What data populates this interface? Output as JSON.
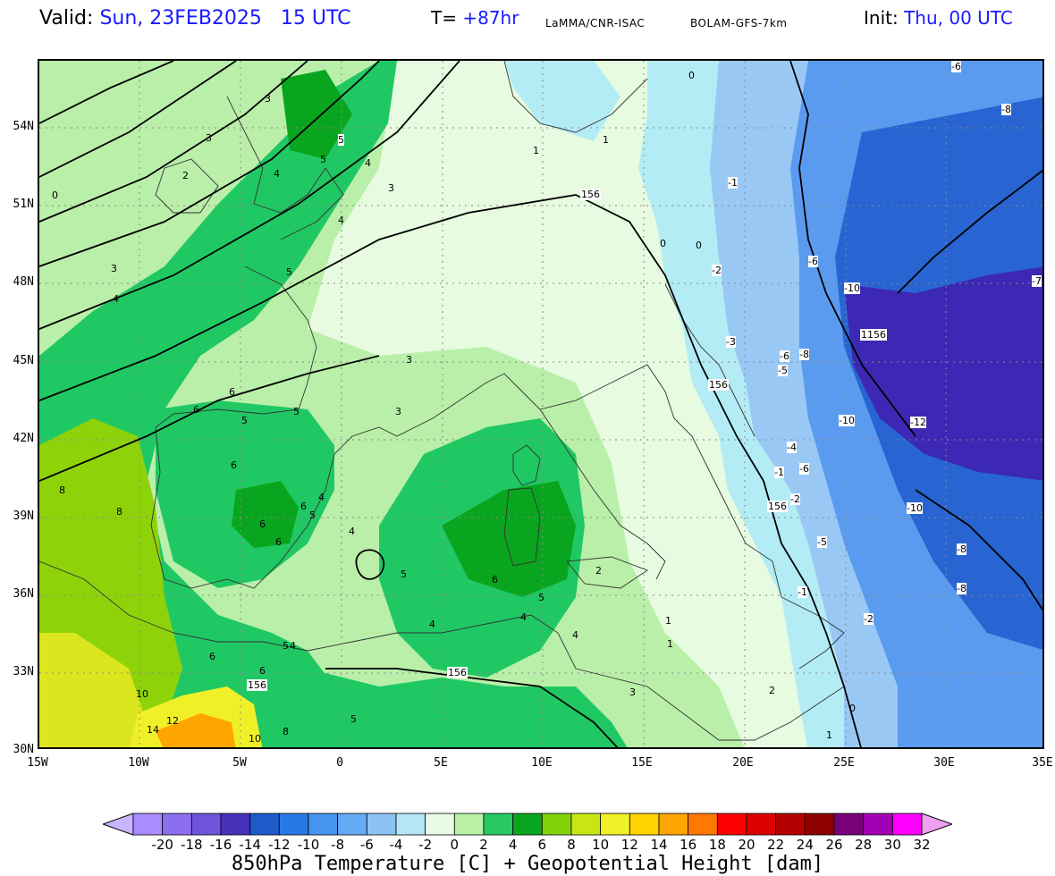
{
  "header": {
    "valid_label": "Valid:",
    "valid_value": "Sun, 23FEB2025   15 UTC",
    "forecast_label": "T=",
    "forecast_value": "+87hr",
    "source": "LaMMA/CNR-ISAC",
    "model": "BOLAM-GFS-7km",
    "init_label": "Init:",
    "init_value": "Thu, 00 UTC"
  },
  "map": {
    "lat_ticks": [
      "54N",
      "51N",
      "48N",
      "45N",
      "42N",
      "39N",
      "36N",
      "33N",
      "30N"
    ],
    "lon_ticks": [
      "15W",
      "10W",
      "5W",
      "0",
      "5E",
      "10E",
      "15E",
      "20E",
      "25E",
      "30E",
      "35E"
    ],
    "height_labels": [
      "156",
      "156",
      "156",
      "156",
      "156",
      "1156"
    ],
    "temp_labels": [
      "3",
      "3",
      "2",
      "4",
      "5",
      "5",
      "4",
      "4",
      "3",
      "3",
      "4",
      "5",
      "6",
      "6",
      "5",
      "5",
      "6",
      "8",
      "8",
      "6",
      "6",
      "6",
      "5",
      "4",
      "4",
      "6",
      "6",
      "4",
      "5",
      "10",
      "12",
      "14",
      "10",
      "8",
      "5",
      "5",
      "6",
      "4",
      "4",
      "4",
      "3",
      "3",
      "5",
      "2",
      "1",
      "1",
      "1",
      "0",
      "0",
      "0",
      "-1",
      "-2",
      "-3",
      "-5",
      "-6",
      "-6",
      "-8",
      "-10",
      "-10",
      "-12",
      "-10",
      "-8",
      "-6",
      "-4",
      "-2",
      "-1",
      "-6",
      "-8",
      "-5",
      "-2",
      "-1",
      "-7",
      "-8",
      "0",
      "1",
      "2",
      "3",
      "0",
      "1"
    ],
    "colors": {
      "land_light": "#e6fbe0",
      "green_light": "#b9efa9",
      "green_mid": "#20c864",
      "green_dark": "#0aa51e",
      "yellowgreen": "#8ed20a",
      "yellow": "#dce61e",
      "sea_cold": "#b3ecf5",
      "blue_light": "#99c8f5",
      "blue_mid": "#5a9bef",
      "blue_dark": "#2864d2",
      "purple": "#3c28b4"
    }
  },
  "colorbar": {
    "labels": [
      "-20",
      "-18",
      "-16",
      "-14",
      "-12",
      "-10",
      "-8",
      "-6",
      "-4",
      "-2",
      "0",
      "2",
      "4",
      "6",
      "8",
      "10",
      "12",
      "14",
      "16",
      "18",
      "20",
      "22",
      "24",
      "26",
      "28",
      "30",
      "32"
    ],
    "colors": [
      "#a98cff",
      "#8c6ef0",
      "#6e55dc",
      "#4632b9",
      "#1e5ac8",
      "#2878e6",
      "#4696f0",
      "#64aaf5",
      "#8cc3f5",
      "#b4e6f5",
      "#e6fae6",
      "#b9f0a5",
      "#28c864",
      "#0aa51e",
      "#82d20a",
      "#c8e614",
      "#f0f028",
      "#ffd200",
      "#ffa500",
      "#ff7800",
      "#ff0000",
      "#dc0000",
      "#b40000",
      "#8c0000",
      "#780078",
      "#a000b4",
      "#ff00ff"
    ],
    "left_triangle": "#c8b4ff",
    "right_triangle": "#f0a0f0",
    "title": "850hPa Temperature [C] + Geopotential Height [dam]"
  }
}
